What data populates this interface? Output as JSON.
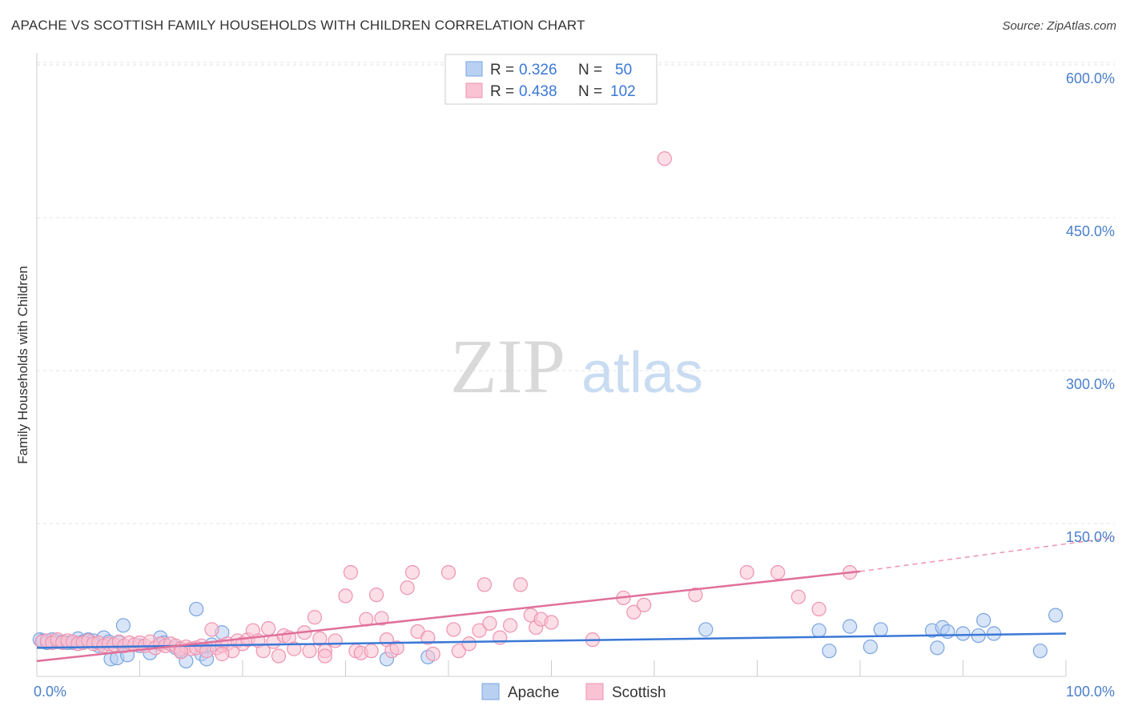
{
  "title": "APACHE VS SCOTTISH FAMILY HOUSEHOLDS WITH CHILDREN CORRELATION CHART",
  "source": "Source: ZipAtlas.com",
  "watermark": {
    "zip": "ZIP",
    "atlas": "atlas"
  },
  "legend": {
    "r_label": "R =",
    "n_label": "N =",
    "rows": [
      {
        "r": "0.326",
        "n": "50",
        "fill": "#b8d0f2",
        "stroke": "#7aa4e0"
      },
      {
        "r": "0.438",
        "n": "102",
        "fill": "#f9c3d3",
        "stroke": "#ee93b0"
      }
    ]
  },
  "chart_data": {
    "type": "scatter",
    "title": "APACHE VS SCOTTISH FAMILY HOUSEHOLDS WITH CHILDREN CORRELATION CHART",
    "xlabel": "",
    "ylabel": "Family Households with Children",
    "xlim": [
      0,
      100
    ],
    "ylim": [
      0,
      625
    ],
    "x_tick_labels": [
      "0.0%",
      "100.0%"
    ],
    "y_ticks": [
      150,
      300,
      450,
      600
    ],
    "y_tick_labels": [
      "150.0%",
      "300.0%",
      "450.0%",
      "600.0%"
    ],
    "series": [
      {
        "name": "Apache",
        "color": "#7aa4e0",
        "fill": "#b8d0f2",
        "trend": {
          "x": [
            0,
            100
          ],
          "y": [
            28,
            42
          ]
        },
        "points": [
          [
            0.3,
            36
          ],
          [
            0.6,
            35
          ],
          [
            1,
            33
          ],
          [
            1.5,
            36
          ],
          [
            2,
            34
          ],
          [
            2.5,
            34
          ],
          [
            3,
            33
          ],
          [
            3.5,
            33
          ],
          [
            4,
            37
          ],
          [
            4.5,
            34
          ],
          [
            5,
            36
          ],
          [
            5.5,
            35
          ],
          [
            6,
            30
          ],
          [
            6.5,
            38
          ],
          [
            7,
            34
          ],
          [
            7.2,
            17
          ],
          [
            7.8,
            18
          ],
          [
            8,
            33
          ],
          [
            8.4,
            50
          ],
          [
            8.8,
            21
          ],
          [
            10,
            30
          ],
          [
            11,
            23
          ],
          [
            12,
            38
          ],
          [
            12.3,
            33
          ],
          [
            13.5,
            28
          ],
          [
            14,
            25
          ],
          [
            14.5,
            15
          ],
          [
            15.5,
            66
          ],
          [
            16,
            22
          ],
          [
            16.5,
            17
          ],
          [
            17,
            31
          ],
          [
            18,
            43
          ],
          [
            34,
            17
          ],
          [
            38,
            19
          ],
          [
            65,
            46
          ],
          [
            76,
            45
          ],
          [
            77,
            25
          ],
          [
            79,
            49
          ],
          [
            81,
            29
          ],
          [
            82,
            46
          ],
          [
            87,
            45
          ],
          [
            87.5,
            28
          ],
          [
            88,
            48
          ],
          [
            88.5,
            44
          ],
          [
            90,
            42
          ],
          [
            91.5,
            40
          ],
          [
            92,
            55
          ],
          [
            93,
            42
          ],
          [
            97.5,
            25
          ],
          [
            99,
            60
          ]
        ]
      },
      {
        "name": "Scottish",
        "color": "#ee93b0",
        "fill": "#f9c3d3",
        "trend": {
          "x": [
            0,
            80
          ],
          "y": [
            15,
            103
          ]
        },
        "trend_dashed": {
          "x": [
            80,
            100
          ],
          "y": [
            103,
            130
          ]
        },
        "points": [
          [
            0.5,
            34
          ],
          [
            1,
            35
          ],
          [
            1.5,
            33
          ],
          [
            2,
            36
          ],
          [
            2.5,
            33
          ],
          [
            3,
            35
          ],
          [
            3.5,
            34
          ],
          [
            4,
            32
          ],
          [
            4.5,
            33
          ],
          [
            5,
            35
          ],
          [
            5.5,
            32
          ],
          [
            6,
            33
          ],
          [
            6.5,
            30
          ],
          [
            7,
            32
          ],
          [
            7.5,
            31
          ],
          [
            8,
            34
          ],
          [
            8.5,
            30
          ],
          [
            9,
            33
          ],
          [
            9.5,
            31
          ],
          [
            10,
            33
          ],
          [
            10.5,
            30
          ],
          [
            11,
            34
          ],
          [
            11.5,
            28
          ],
          [
            12,
            32
          ],
          [
            12.5,
            30
          ],
          [
            13,
            32
          ],
          [
            13.5,
            30
          ],
          [
            14,
            27
          ],
          [
            14.5,
            29
          ],
          [
            15,
            27
          ],
          [
            15.5,
            28
          ],
          [
            16,
            30
          ],
          [
            16.5,
            25
          ],
          [
            17,
            46
          ],
          [
            17.5,
            28
          ],
          [
            18,
            30
          ],
          [
            18.5,
            32
          ],
          [
            19,
            25
          ],
          [
            19.5,
            35
          ],
          [
            20,
            32
          ],
          [
            20.5,
            36
          ],
          [
            21,
            45
          ],
          [
            21.5,
            35
          ],
          [
            22,
            25
          ],
          [
            22.5,
            47
          ],
          [
            23,
            34
          ],
          [
            23.5,
            20
          ],
          [
            24,
            40
          ],
          [
            24.5,
            38
          ],
          [
            25,
            27
          ],
          [
            26,
            43
          ],
          [
            26.5,
            25
          ],
          [
            27,
            58
          ],
          [
            27.5,
            37
          ],
          [
            28,
            25
          ],
          [
            29,
            35
          ],
          [
            30,
            79
          ],
          [
            30.5,
            102
          ],
          [
            31,
            25
          ],
          [
            31.5,
            23
          ],
          [
            32,
            56
          ],
          [
            32.5,
            25
          ],
          [
            33,
            80
          ],
          [
            33.5,
            57
          ],
          [
            34,
            36
          ],
          [
            34.5,
            25
          ],
          [
            35,
            28
          ],
          [
            36,
            87
          ],
          [
            36.5,
            102
          ],
          [
            37,
            44
          ],
          [
            38,
            38
          ],
          [
            38.5,
            22
          ],
          [
            40,
            102
          ],
          [
            40.5,
            46
          ],
          [
            41,
            25
          ],
          [
            42,
            32
          ],
          [
            43,
            45
          ],
          [
            43.5,
            90
          ],
          [
            44,
            52
          ],
          [
            45,
            38
          ],
          [
            46,
            50
          ],
          [
            47,
            90
          ],
          [
            48,
            60
          ],
          [
            48.5,
            48
          ],
          [
            49,
            56
          ],
          [
            50,
            53
          ],
          [
            54,
            36
          ],
          [
            57,
            77
          ],
          [
            58,
            63
          ],
          [
            59,
            70
          ],
          [
            64,
            80
          ],
          [
            69,
            102
          ],
          [
            72,
            102
          ],
          [
            74,
            78
          ],
          [
            76,
            66
          ],
          [
            79,
            102
          ],
          [
            61,
            508
          ],
          [
            28,
            20
          ],
          [
            18,
            22
          ],
          [
            14,
            24
          ]
        ]
      }
    ]
  },
  "bottom_legend": [
    {
      "label": "Apache",
      "fill": "#b8d0f2",
      "stroke": "#7aa4e0"
    },
    {
      "label": "Scottish",
      "fill": "#f9c3d3",
      "stroke": "#ee93b0"
    }
  ]
}
